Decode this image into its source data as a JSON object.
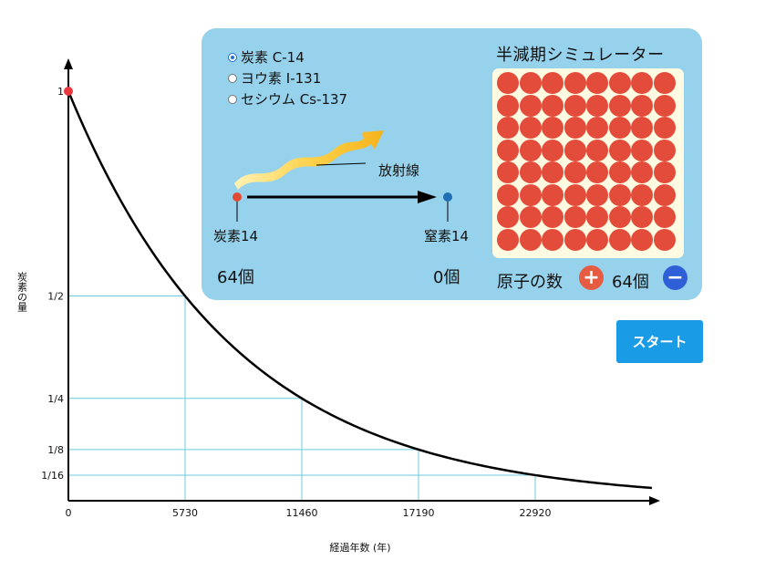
{
  "graph": {
    "y_axis_label": "炭素の量",
    "x_axis_label": "経過年数 (年)",
    "y_ticks": [
      "1",
      "1/2",
      "1/4",
      "1/8",
      "1/16"
    ],
    "x_ticks": [
      "0",
      "5730",
      "11460",
      "17190",
      "22920"
    ],
    "y_tick_values": [
      1,
      0.5,
      0.25,
      0.125,
      0.0625
    ],
    "x_tick_values": [
      0,
      5730,
      11460,
      17190,
      22920
    ],
    "half_life_years": 5730,
    "curve_end_years": 22920,
    "colors": {
      "grid": "#6ccbe0",
      "curve": "#000000",
      "marker": "#e8383d"
    }
  },
  "isotopes": [
    {
      "label": "炭素 C-14",
      "selected": true
    },
    {
      "label": "ヨウ素 I-131",
      "selected": false
    },
    {
      "label": "セシウム Cs-137",
      "selected": false
    }
  ],
  "decay": {
    "radiation_label": "放射線",
    "parent_label": "炭素14",
    "daughter_label": "窒素14",
    "parent_count": "64個",
    "daughter_count": "0個",
    "parent_color": "#e04a32",
    "daughter_color": "#1f6fb5"
  },
  "simulator": {
    "title": "半減期シミュレーター",
    "atom_total": 64,
    "atom_count_label": "原子の数",
    "atom_count_value": "64個",
    "plus_symbol": "+",
    "minus_symbol": "−"
  },
  "start_button": {
    "label": "スタート"
  }
}
